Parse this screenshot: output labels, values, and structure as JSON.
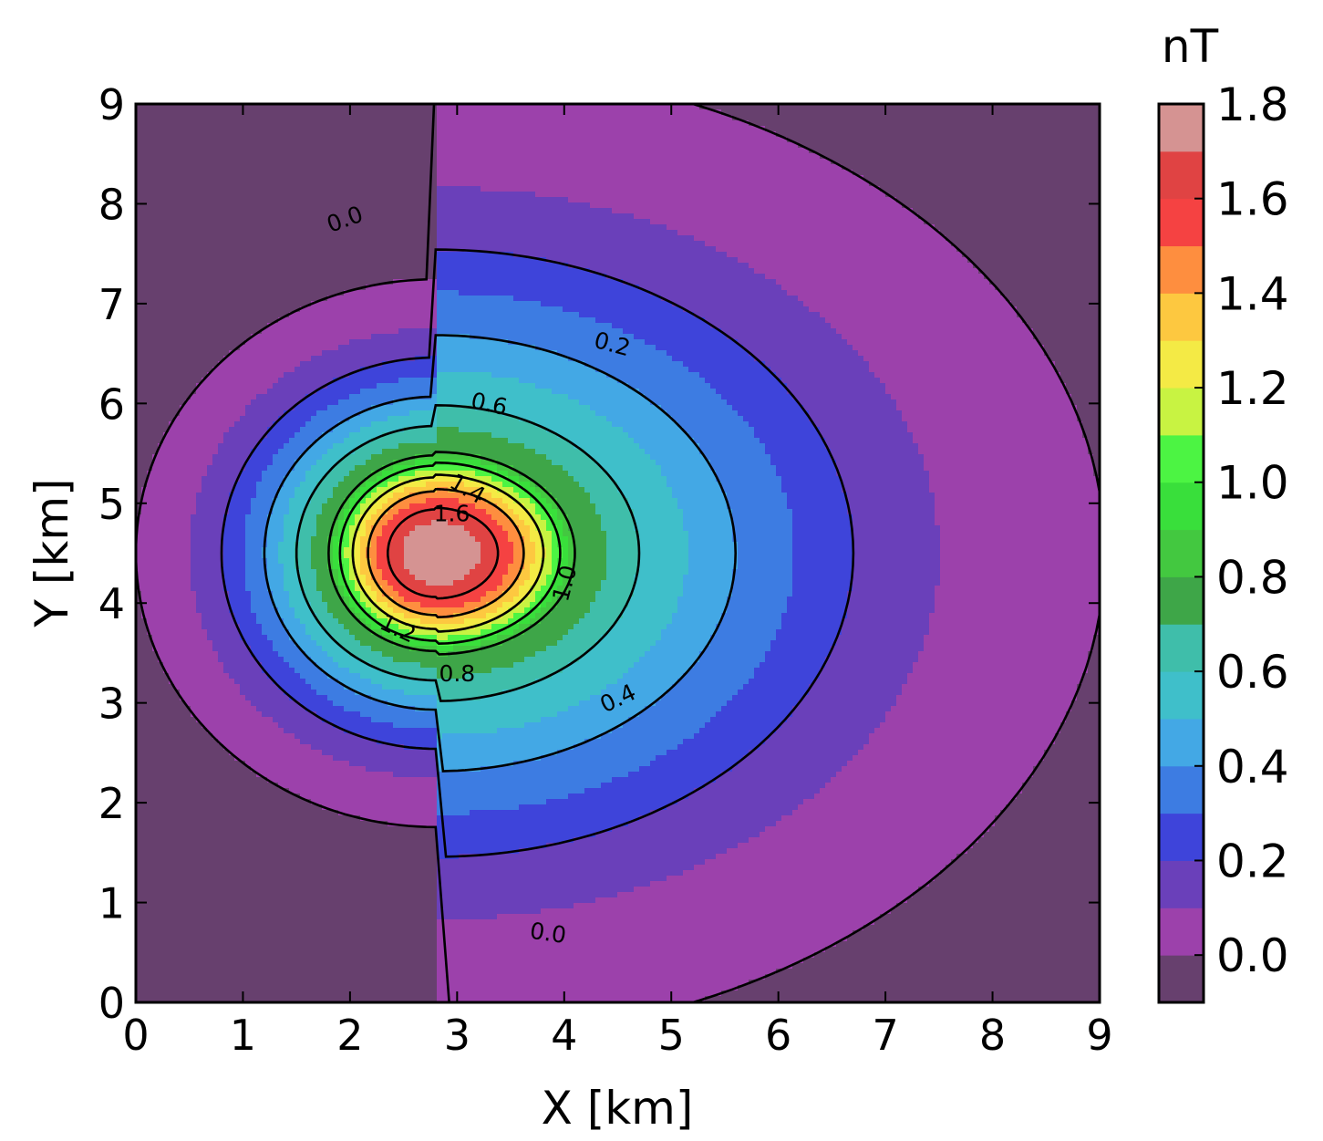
{
  "chart_data": {
    "type": "heatmap",
    "subtype": "filled-contour",
    "xlabel": "X [km]",
    "ylabel": "Y [km]",
    "xlim": [
      0,
      9
    ],
    "ylim": [
      0,
      9
    ],
    "x_ticks": [
      "0",
      "1",
      "2",
      "3",
      "4",
      "5",
      "6",
      "7",
      "8",
      "9"
    ],
    "y_ticks": [
      "0",
      "1",
      "2",
      "3",
      "4",
      "5",
      "6",
      "7",
      "8",
      "9"
    ],
    "grid": false,
    "field": {
      "peak_value": 1.8,
      "peak_location": [
        2.8,
        4.5
      ],
      "lobe": {
        "x_right_at_y_center": [
          9.05,
          7.5,
          6.7,
          5.6,
          4.7,
          4.1
        ],
        "x_left_at_y_center": [
          0.0,
          0.5,
          0.8,
          1.2,
          1.5,
          1.8
        ]
      }
    },
    "colorbar": {
      "unit": "nT",
      "ticks": [
        "0.0",
        "0.2",
        "0.4",
        "0.6",
        "0.8",
        "1.0",
        "1.2",
        "1.4",
        "1.6",
        "1.8"
      ],
      "levels": [
        -0.1,
        0.0,
        0.1,
        0.2,
        0.3,
        0.4,
        0.5,
        0.6,
        0.7,
        0.8,
        0.9,
        1.0,
        1.1,
        1.2,
        1.3,
        1.4,
        1.5,
        1.6,
        1.7,
        1.8
      ],
      "colors": [
        "#67406e",
        "#9c41ab",
        "#6a40ba",
        "#3e44da",
        "#3d7ce2",
        "#43a8e5",
        "#3fbfca",
        "#3fbeaa",
        "#3ea648",
        "#43c840",
        "#39df3b",
        "#4cf443",
        "#c8f342",
        "#f4ea45",
        "#fdc840",
        "#fe8e3f",
        "#f54242",
        "#e04343",
        "#d59392"
      ]
    },
    "contour_lines": [
      0.0,
      0.2,
      0.4,
      0.6,
      0.8,
      1.0,
      1.2,
      1.4,
      1.6
    ],
    "contour_labels": [
      {
        "text": "0.0",
        "x": 1.95,
        "y": 7.85,
        "angle": -20
      },
      {
        "text": "0.2",
        "x": 4.45,
        "y": 6.6,
        "angle": 15
      },
      {
        "text": "0.6",
        "x": 3.3,
        "y": 6.0,
        "angle": 12
      },
      {
        "text": "1.4",
        "x": 3.1,
        "y": 5.15,
        "angle": 30
      },
      {
        "text": "1.6",
        "x": 2.95,
        "y": 4.9,
        "angle": 0
      },
      {
        "text": "1.0",
        "x": 4.0,
        "y": 4.2,
        "angle": -75
      },
      {
        "text": "1.2",
        "x": 2.45,
        "y": 3.75,
        "angle": 25
      },
      {
        "text": "0.8",
        "x": 3.0,
        "y": 3.3,
        "angle": 0
      },
      {
        "text": "0.4",
        "x": 4.5,
        "y": 3.05,
        "angle": -25
      },
      {
        "text": "0.0",
        "x": 3.85,
        "y": 0.7,
        "angle": 8
      }
    ]
  }
}
